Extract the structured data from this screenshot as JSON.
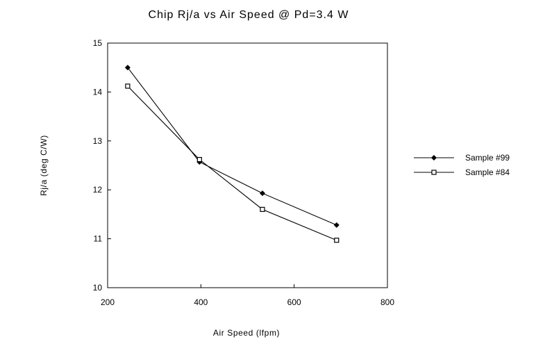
{
  "chart_data": {
    "type": "line",
    "title": "Chip Rj/a vs Air Speed @ Pd=3.4 W",
    "xlabel": "Air Speed (lfpm)",
    "ylabel": "Rj/a (deg C/W)",
    "xlim": [
      200,
      800
    ],
    "ylim": [
      10,
      15
    ],
    "xticks": [
      "200",
      "400",
      "600",
      "800"
    ],
    "yticks": [
      "10",
      "11",
      "12",
      "13",
      "14",
      "15"
    ],
    "grid": false,
    "legend_position": "right",
    "series": [
      {
        "name": "Sample #99",
        "marker": "diamond",
        "x": [
          243,
          397,
          532,
          691
        ],
        "y": [
          14.5,
          12.57,
          11.93,
          11.28
        ]
      },
      {
        "name": "Sample #84",
        "marker": "square",
        "x": [
          243,
          397,
          532,
          691
        ],
        "y": [
          14.12,
          12.62,
          11.6,
          10.97
        ]
      }
    ]
  }
}
